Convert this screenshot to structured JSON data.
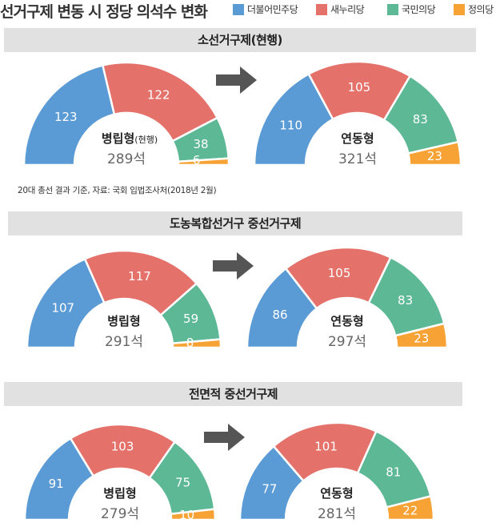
{
  "title": "선거구제 변동 시 정당 의석수 변화",
  "legend": [
    {
      "label": "더불어민주당",
      "color": "#5b9bd5"
    },
    {
      "label": "새누리당",
      "color": "#e4716a"
    },
    {
      "label": "국민의당",
      "color": "#5db896"
    },
    {
      "label": "정의당",
      "color": "#f7a234"
    }
  ],
  "source": "20대 총선 결과 기준, 자료: 국회 입법조사처(2018년 2월)",
  "chart_data": [
    {
      "type": "pie",
      "section": "소선거구제(현행)",
      "label": "병립형",
      "label_suffix": "(현행)",
      "total": "289석",
      "series": [
        "더불어민주당",
        "새누리당",
        "국민의당",
        "정의당"
      ],
      "values": [
        123,
        122,
        38,
        6
      ]
    },
    {
      "type": "pie",
      "section": "소선거구제(현행)",
      "label": "연동형",
      "total": "321석",
      "series": [
        "더불어민주당",
        "새누리당",
        "국민의당",
        "정의당"
      ],
      "values": [
        110,
        105,
        83,
        23
      ]
    },
    {
      "type": "pie",
      "section": "도농복합선거구 중선거구제",
      "label": "병립형",
      "total": "291석",
      "series": [
        "더불어민주당",
        "새누리당",
        "국민의당",
        "정의당"
      ],
      "values": [
        107,
        117,
        59,
        8
      ]
    },
    {
      "type": "pie",
      "section": "도농복합선거구 중선거구제",
      "label": "연동형",
      "total": "297석",
      "series": [
        "더불어민주당",
        "새누리당",
        "국민의당",
        "정의당"
      ],
      "values": [
        86,
        105,
        83,
        23
      ]
    },
    {
      "type": "pie",
      "section": "전면적 중선거구제",
      "label": "병립형",
      "total": "279석",
      "series": [
        "더불어민주당",
        "새누리당",
        "국민의당",
        "정의당"
      ],
      "values": [
        91,
        103,
        75,
        10
      ]
    },
    {
      "type": "pie",
      "section": "전면적 중선거구제",
      "label": "연동형",
      "total": "281석",
      "series": [
        "더불어민주당",
        "새누리당",
        "국민의당",
        "정의당"
      ],
      "values": [
        77,
        101,
        81,
        22
      ]
    }
  ],
  "sections": [
    {
      "title": "소선거구제(현행)"
    },
    {
      "title": "도농복합선거구 중선거구제"
    },
    {
      "title": "전면적 중선거구제"
    }
  ],
  "colors": {
    "더불어민주당": "#5b9bd5",
    "새누리당": "#e4716a",
    "국민의당": "#5db896",
    "정의당": "#f7a234",
    "arrow": "#555555",
    "band": "#e1e1e1"
  }
}
